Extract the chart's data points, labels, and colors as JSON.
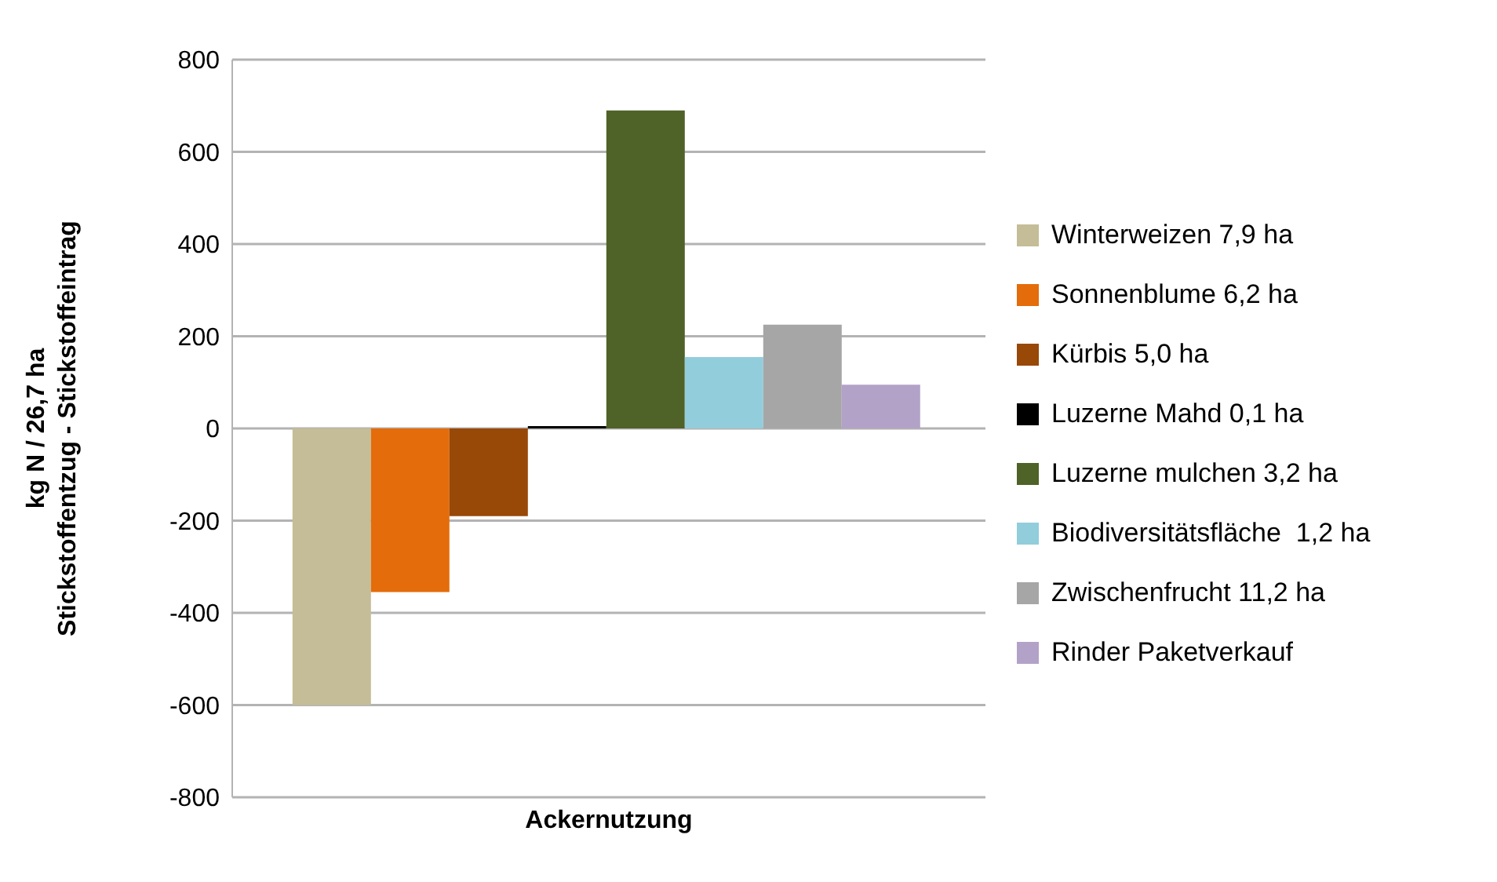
{
  "chart_data": {
    "type": "bar",
    "ylabel": "kg N / 26,7 ha\nStickstoffentzug - Stickstoffeintrag",
    "categories": [
      "Ackernutzung"
    ],
    "series": [
      {
        "name": "Winterweizen 7,9 ha",
        "color": "#c4bd97",
        "values": [
          -600
        ]
      },
      {
        "name": "Sonnenblume 6,2 ha",
        "color": "#e46c0a",
        "values": [
          -355
        ]
      },
      {
        "name": "Kürbis 5,0 ha",
        "color": "#984807",
        "values": [
          -190
        ]
      },
      {
        "name": "Luzerne Mahd 0,1 ha",
        "color": "#000000",
        "values": [
          5
        ]
      },
      {
        "name": "Luzerne mulchen 3,2 ha",
        "color": "#4f6228",
        "values": [
          690
        ]
      },
      {
        "name": "Biodiversitätsfläche  1,2 ha",
        "color": "#92cddc",
        "values": [
          155
        ]
      },
      {
        "name": "Zwischenfrucht 11,2 ha",
        "color": "#a6a6a6",
        "values": [
          225
        ]
      },
      {
        "name": "Rinder Paketverkauf",
        "color": "#b3a2c7",
        "values": [
          95
        ]
      }
    ],
    "ylim": [
      -800,
      800
    ],
    "yticks": [
      -800,
      -600,
      -400,
      -200,
      0,
      200,
      400,
      600,
      800
    ],
    "grid": "y",
    "legend": "right"
  }
}
